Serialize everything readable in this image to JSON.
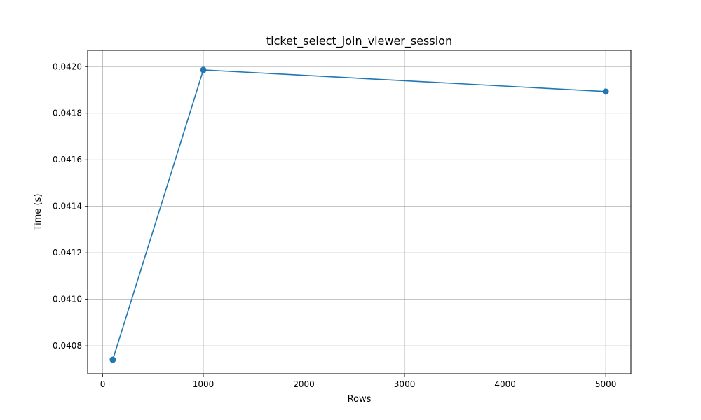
{
  "chart_data": {
    "type": "line",
    "title": "ticket_select_join_viewer_session",
    "xlabel": "Rows",
    "ylabel": "Time (s)",
    "xlim": [
      -150,
      5250
    ],
    "ylim": [
      0.04068,
      0.04207
    ],
    "x_ticks": [
      0,
      1000,
      2000,
      3000,
      4000,
      5000
    ],
    "x_tick_labels": [
      "0",
      "1000",
      "2000",
      "3000",
      "4000",
      "5000"
    ],
    "y_ticks": [
      0.0408,
      0.041,
      0.0412,
      0.0414,
      0.0416,
      0.0418,
      0.042
    ],
    "y_tick_labels": [
      "0.0408",
      "0.0410",
      "0.0412",
      "0.0414",
      "0.0416",
      "0.0418",
      "0.0420"
    ],
    "grid": true,
    "series": [
      {
        "x": [
          100,
          1000,
          5000
        ],
        "y": [
          0.04074,
          0.041986,
          0.041893
        ],
        "color": "#1f77b4",
        "marker": "circle"
      }
    ]
  }
}
